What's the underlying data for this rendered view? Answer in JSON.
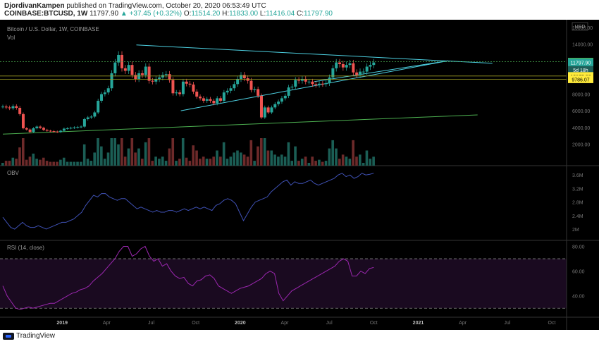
{
  "header": {
    "author": "DjordivanKampen",
    "published": "published on TradingView.com, October 20, 2020 06:53:49 UTC",
    "symbol": "COINBASE:BTCUSD, 1W",
    "last": "11797.90",
    "change": "▲ +37.45 (+0.32%)",
    "o_label": "O:",
    "o": "11514.20",
    "h_label": "H:",
    "h": "11833.00",
    "l_label": "L:",
    "l": "11416.04",
    "c_label": "C:",
    "c": "11797.90"
  },
  "footer": {
    "brand": "TradingView"
  },
  "colors": {
    "background": "#000000",
    "up": "#26a69a",
    "down": "#ef5350",
    "trend": "#4dd0e1",
    "support": "#4caf50",
    "obv": "#3f51b5",
    "rsi": "#9c27b0",
    "rsi_band": "#1a0a20",
    "price_tag": "#ffeb3b"
  },
  "chart_data": [
    {
      "type": "candlestick",
      "title": "Bitcoin / U.S. Dollar, 1W, COINBASE",
      "sublabel": "Vol",
      "currency": "USD",
      "ylim": [
        0,
        16000
      ],
      "yticks": [
        2000,
        4000,
        6000,
        8000,
        10000,
        12000,
        14000,
        16000
      ],
      "ytick_labels": [
        "2000.00",
        "4000.00",
        "6000.00",
        "8000.00",
        "10000.00",
        "12000.00",
        "14000.00",
        "16000.00"
      ],
      "xlim": [
        "2018-09",
        "2021-11"
      ],
      "xticks": [
        "2019",
        "Apr",
        "Jul",
        "Oct",
        "2020",
        "Apr",
        "Jul",
        "Oct",
        "2021",
        "Apr",
        "Jul",
        "Oct"
      ],
      "xtick_dates": [
        "2019-01",
        "2019-04",
        "2019-07",
        "2019-10",
        "2020-01",
        "2020-04",
        "2020-07",
        "2020-10",
        "2021-01",
        "2021-04",
        "2021-07",
        "2021-10"
      ],
      "price_close": [
        6500,
        6400,
        6300,
        6550,
        6350,
        5600,
        3900,
        3750,
        3450,
        3900,
        4100,
        3950,
        3700,
        3600,
        3550,
        3500,
        3450,
        3600,
        3850,
        3900,
        3950,
        4000,
        4050,
        4100,
        5000,
        5200,
        5300,
        5800,
        7200,
        8000,
        8200,
        8700,
        10500,
        11800,
        12700,
        11100,
        10800,
        11500,
        10300,
        9800,
        10500,
        10300,
        11300,
        9600,
        9500,
        9800,
        10000,
        10300,
        10400,
        9700,
        8100,
        8200,
        8000,
        9500,
        9250,
        9150,
        8300,
        7700,
        7500,
        7200,
        7400,
        7200,
        6900,
        7500,
        7200,
        8200,
        8400,
        8700,
        9200,
        9800,
        10300,
        9900,
        9600,
        8500,
        8600,
        7800,
        5200,
        6400,
        5800,
        6400,
        6800,
        7100,
        7500,
        7800,
        8800,
        8900,
        9700,
        9600,
        9800,
        9500,
        9500,
        9200,
        9100,
        9250,
        9200,
        9300,
        10000,
        11100,
        11800,
        11600,
        11200,
        11500,
        11700,
        10600,
        10300,
        10700,
        10700,
        11300,
        11500,
        11797.9
      ],
      "annotations": [
        {
          "label": "11893.38",
          "value": 11893.38,
          "style": "green-dashed"
        },
        {
          "label": "11797.90",
          "value": 11797.9,
          "style": "last-price"
        },
        {
          "label": "5d 18h",
          "value": 10900,
          "style": "countdown"
        },
        {
          "label": "10173.92",
          "value": 10173.92,
          "style": "yellow"
        },
        {
          "label": "9786.07",
          "value": 9786.07,
          "style": "yellow"
        }
      ],
      "trendlines": [
        {
          "name": "resistance",
          "from": [
            "2019-06",
            13900
          ],
          "to": [
            "2021-06",
            11700
          ]
        },
        {
          "name": "triangle-support",
          "from": [
            "2019-09",
            6000
          ],
          "to": [
            "2021-03",
            12000
          ]
        },
        {
          "name": "triangle-support-2",
          "from": [
            "2020-06",
            9500
          ],
          "to": [
            "2021-03",
            12000
          ]
        },
        {
          "name": "long-support",
          "from": [
            "2018-09",
            3200
          ],
          "to": [
            "2021-05",
            5500
          ]
        }
      ]
    },
    {
      "type": "line",
      "title": "OBV",
      "ylim": [
        1.75,
        3.75
      ],
      "ytick_labels": [
        "3.6M",
        "3.2M",
        "2.8M",
        "2.4M",
        "2M"
      ],
      "ytick_values": [
        3.6,
        3.2,
        2.8,
        2.4,
        2.0
      ],
      "values": [
        2.35,
        2.2,
        2.05,
        2.0,
        2.1,
        2.2,
        2.1,
        2.05,
        2.05,
        2.1,
        2.05,
        2.0,
        2.05,
        2.1,
        2.15,
        2.2,
        2.2,
        2.25,
        2.3,
        2.4,
        2.5,
        2.7,
        2.85,
        3.0,
        2.95,
        3.05,
        3.05,
        2.95,
        2.9,
        2.85,
        2.9,
        2.9,
        2.8,
        2.7,
        2.6,
        2.65,
        2.6,
        2.55,
        2.5,
        2.55,
        2.5,
        2.5,
        2.55,
        2.55,
        2.5,
        2.55,
        2.6,
        2.55,
        2.6,
        2.65,
        2.6,
        2.65,
        2.6,
        2.55,
        2.7,
        2.75,
        2.85,
        2.9,
        2.85,
        2.75,
        2.5,
        2.25,
        2.45,
        2.65,
        2.8,
        2.85,
        2.9,
        2.95,
        3.1,
        3.2,
        3.3,
        3.4,
        3.45,
        3.3,
        3.4,
        3.35,
        3.35,
        3.4,
        3.45,
        3.35,
        3.3,
        3.35,
        3.4,
        3.45,
        3.5,
        3.6,
        3.65,
        3.55,
        3.6,
        3.5,
        3.55,
        3.65,
        3.6,
        3.62,
        3.65
      ]
    },
    {
      "type": "line",
      "title": "RSI (14, close)",
      "ylim": [
        25,
        82
      ],
      "bands": [
        30,
        70
      ],
      "ytick_labels": [
        "80.00",
        "60.00",
        "40.00"
      ],
      "ytick_values": [
        80,
        60,
        40
      ],
      "values": [
        48,
        40,
        35,
        30,
        29,
        30,
        31,
        30,
        31,
        32,
        33,
        34,
        34,
        36,
        38,
        40,
        42,
        43,
        45,
        46,
        48,
        52,
        55,
        58,
        62,
        66,
        70,
        76,
        80,
        80,
        72,
        74,
        78,
        80,
        72,
        68,
        70,
        64,
        66,
        60,
        56,
        54,
        55,
        50,
        48,
        52,
        53,
        56,
        57,
        54,
        48,
        46,
        44,
        42,
        44,
        46,
        47,
        48,
        50,
        52,
        54,
        58,
        60,
        58,
        42,
        36,
        40,
        44,
        46,
        48,
        50,
        52,
        54,
        56,
        58,
        60,
        62,
        64,
        68,
        70,
        68,
        56,
        56,
        60,
        58,
        62,
        63
      ]
    }
  ]
}
